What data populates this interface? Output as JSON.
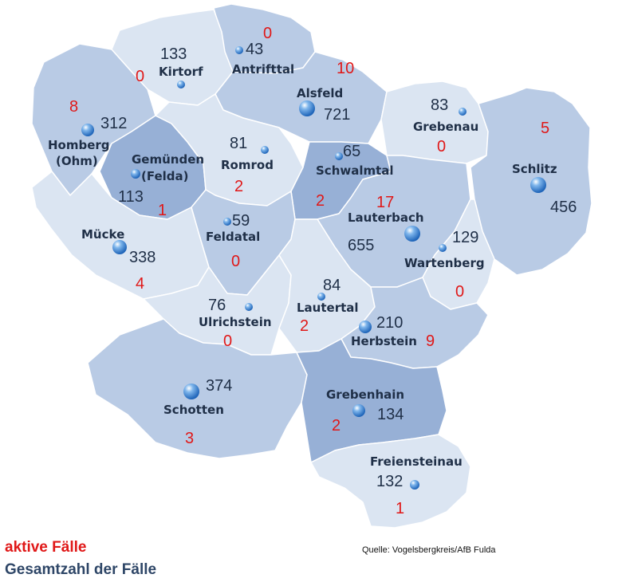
{
  "legend": {
    "active_label": "aktive Fälle",
    "total_label": "Gesamtzahl der Fälle"
  },
  "source": "Quelle: Vogelsbergkreis/AfB Fulda",
  "colors": {
    "active": "#e01818",
    "total": "#1f2f47",
    "region_light": "#dbe5f2",
    "region_mid": "#b9cbe5",
    "region_dark": "#97b0d6"
  },
  "icons": {
    "marker": "sphere-marker-icon"
  },
  "municipalities": [
    {
      "id": "antrifttal",
      "name_lines": [
        "Antrifttal"
      ],
      "total": "43",
      "active": "0"
    },
    {
      "id": "kirtorf",
      "name_lines": [
        "Kirtorf"
      ],
      "total": "133",
      "active": "0"
    },
    {
      "id": "alsfeld",
      "name_lines": [
        "Alsfeld"
      ],
      "total": "721",
      "active": "10"
    },
    {
      "id": "homberg",
      "name_lines": [
        "Homberg",
        "(Ohm)"
      ],
      "total": "312",
      "active": "8"
    },
    {
      "id": "gemuenden",
      "name_lines": [
        "Gemünden",
        "(Felda)"
      ],
      "total": "113",
      "active": "1"
    },
    {
      "id": "romrod",
      "name_lines": [
        "Romrod"
      ],
      "total": "81",
      "active": "2"
    },
    {
      "id": "schwalmtal",
      "name_lines": [
        "Schwalmtal"
      ],
      "total": "65",
      "active": "2"
    },
    {
      "id": "grebenau",
      "name_lines": [
        "Grebenau"
      ],
      "total": "83",
      "active": "0"
    },
    {
      "id": "schlitz",
      "name_lines": [
        "Schlitz"
      ],
      "total": "456",
      "active": "5"
    },
    {
      "id": "muecke",
      "name_lines": [
        "Mücke"
      ],
      "total": "338",
      "active": "4"
    },
    {
      "id": "feldatal",
      "name_lines": [
        "Feldatal"
      ],
      "total": "59",
      "active": "0"
    },
    {
      "id": "lauterbach",
      "name_lines": [
        "Lauterbach"
      ],
      "total": "655",
      "active": "17"
    },
    {
      "id": "wartenberg",
      "name_lines": [
        "Wartenberg"
      ],
      "total": "129",
      "active": "0"
    },
    {
      "id": "ulrichstein",
      "name_lines": [
        "Ulrichstein"
      ],
      "total": "76",
      "active": "0"
    },
    {
      "id": "lautertal",
      "name_lines": [
        "Lautertal"
      ],
      "total": "84",
      "active": "2"
    },
    {
      "id": "herbstein",
      "name_lines": [
        "Herbstein"
      ],
      "total": "210",
      "active": "9"
    },
    {
      "id": "schotten",
      "name_lines": [
        "Schotten"
      ],
      "total": "374",
      "active": "3"
    },
    {
      "id": "grebenhain",
      "name_lines": [
        "Grebenhain"
      ],
      "total": "134",
      "active": "2"
    },
    {
      "id": "freiensteinau",
      "name_lines": [
        "Freiensteinau"
      ],
      "total": "132",
      "active": "1"
    }
  ]
}
